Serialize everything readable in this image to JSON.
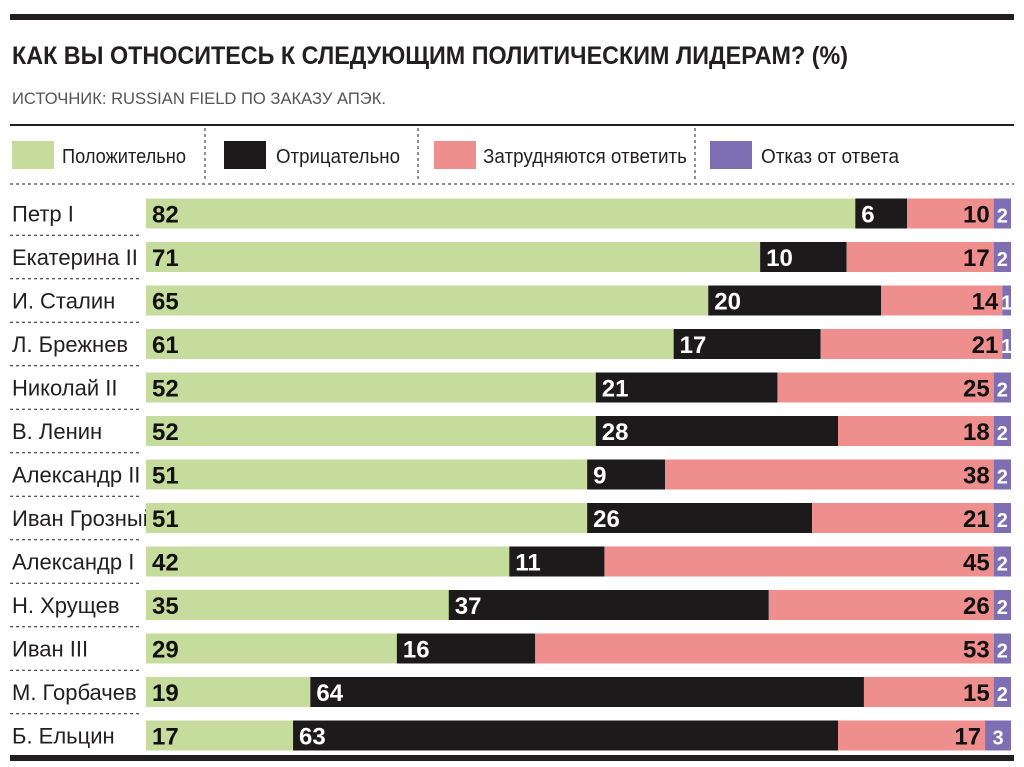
{
  "chart_data": {
    "type": "bar",
    "stacked": true,
    "orientation": "horizontal",
    "title": "КАК ВЫ ОТНОСИТЕСЬ К СЛЕДУЮЩИМ ПОЛИТИЧЕСКИМ ЛИДЕРАМ? (%)",
    "subtitle": "ИСТОЧНИК: RUSSIAN FIELD ПО ЗАКАЗУ АПЭК.",
    "legend_position": "top",
    "categories": [
      "Петр I",
      "Екатерина II",
      "И. Сталин",
      "Л. Брежнев",
      "Николай II",
      "В. Ленин",
      "Александр II",
      "Иван Грозный",
      "Александр I",
      "Н. Хрущев",
      "Иван III",
      "М. Горбачев",
      "Б. Ельцин"
    ],
    "series": [
      {
        "name": "Положительно",
        "color": "#c5dc9c",
        "label_color": "#111111",
        "values": [
          82,
          71,
          65,
          61,
          52,
          52,
          51,
          51,
          42,
          35,
          29,
          19,
          17
        ]
      },
      {
        "name": "Отрицательно",
        "color": "#1c1a1b",
        "label_color": "#ffffff",
        "values": [
          6,
          10,
          20,
          17,
          21,
          28,
          9,
          26,
          11,
          37,
          16,
          64,
          63
        ]
      },
      {
        "name": "Затрудняются ответить",
        "color": "#ee8f8e",
        "label_color": "#111111",
        "values": [
          10,
          17,
          14,
          21,
          25,
          18,
          38,
          21,
          45,
          26,
          53,
          15,
          17
        ]
      },
      {
        "name": "Отказ от ответа",
        "color": "#7e6fb4",
        "label_color": "#ffffff",
        "values": [
          2,
          2,
          1,
          1,
          2,
          2,
          2,
          2,
          2,
          2,
          2,
          2,
          3
        ]
      }
    ]
  }
}
